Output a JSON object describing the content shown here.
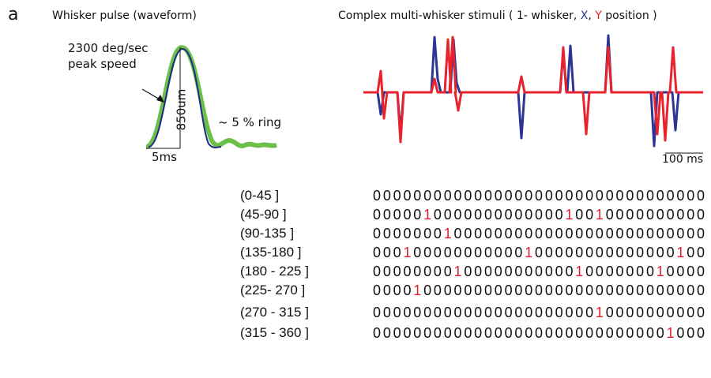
{
  "panel_label": "a",
  "waveform": {
    "title": "Whisker pulse (waveform)",
    "speed_label": [
      "2300 deg/sec",
      "peak speed"
    ],
    "amplitude_label": "850um",
    "ring_label": "~ 5 % ring",
    "time_scale": "5ms"
  },
  "stimuli": {
    "title": {
      "prefix": "Complex multi-whisker stimuli ( 1- whisker, ",
      "x": "X",
      "sep": ",",
      "y": "Y",
      "suffix": " position )"
    },
    "time_scale": "100 ms"
  },
  "table": {
    "rows": [
      [
        "(0-45 ]",
        "000000000000000000000000000000000"
      ],
      [
        "(45-90 ]",
        "000001000000000000010010000000000"
      ],
      [
        "(90-135 ]",
        "000000010000000000000000000000000"
      ],
      [
        "(135-180 ]",
        "000100000000000100000000000000100"
      ],
      [
        "(180 - 225 ]",
        "000000001000000000001000000010000"
      ],
      [
        "(225- 270 ]",
        "000010000000000000000000000000000"
      ],
      [
        "(270 - 315 ]",
        "000000000000000000000010000000000"
      ],
      [
        "(315 - 360 ]",
        "000000000000000000000000000001000"
      ]
    ]
  }
}
